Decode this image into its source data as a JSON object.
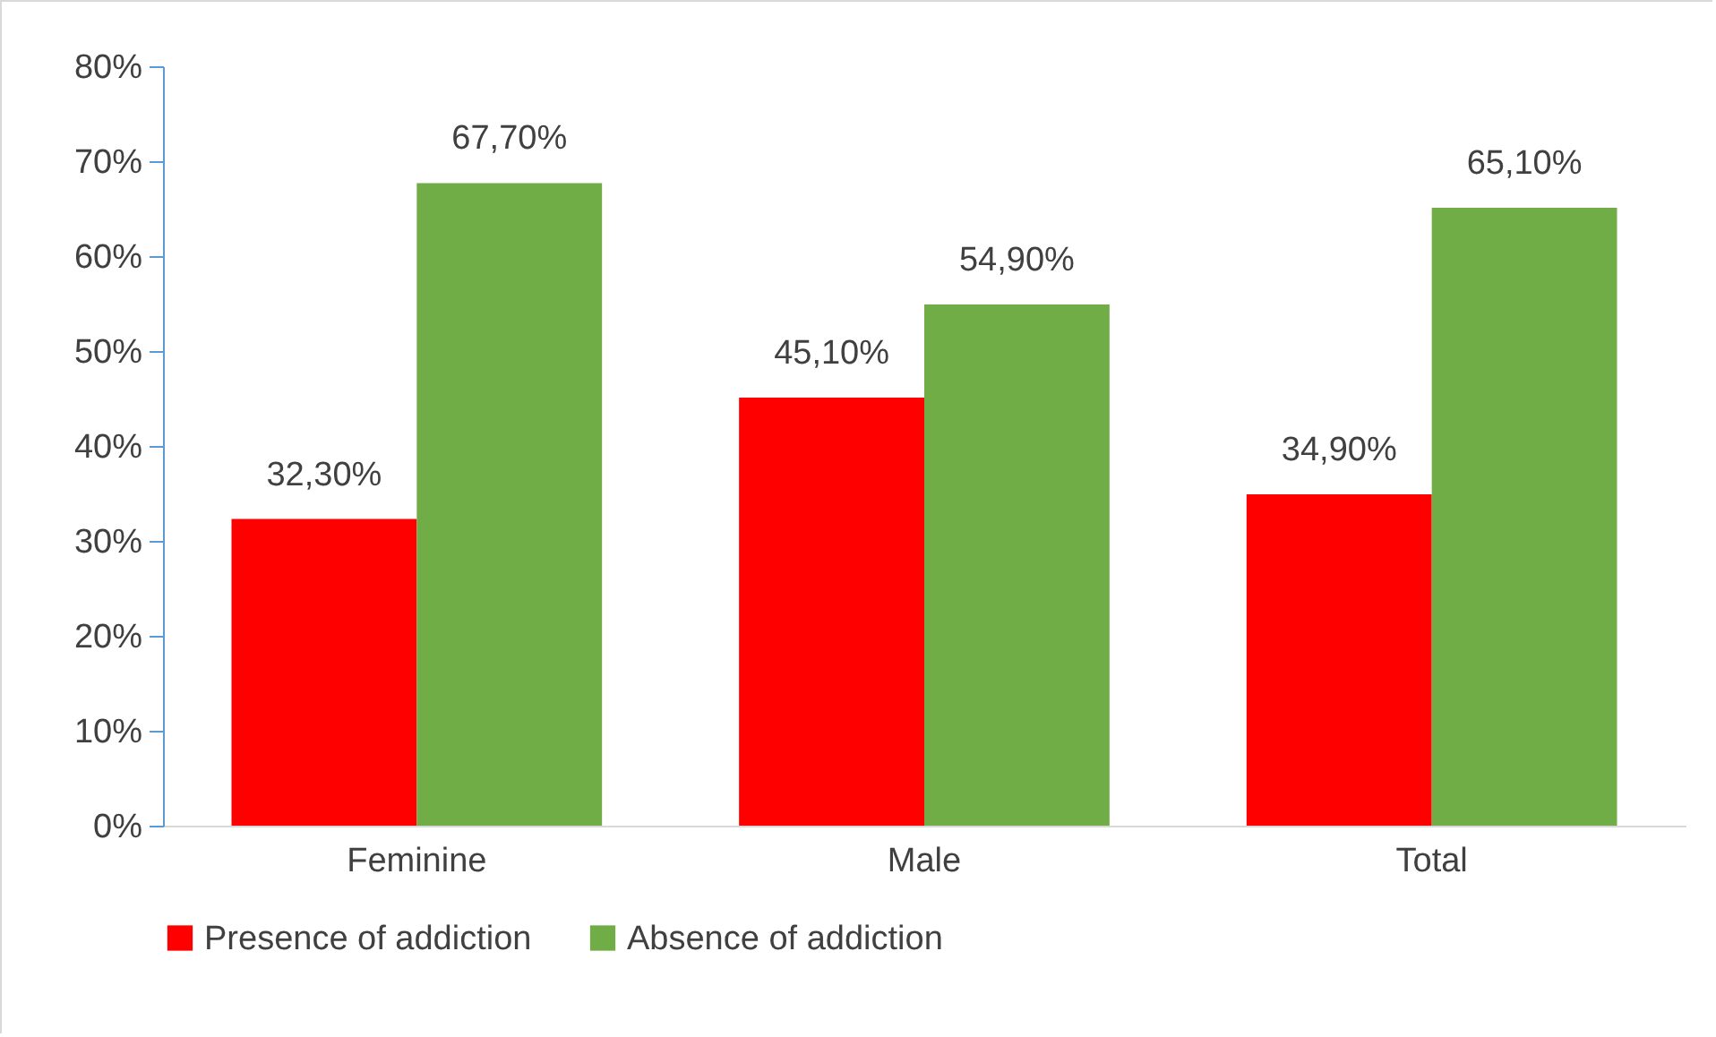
{
  "chart_data": {
    "type": "bar",
    "categories": [
      "Feminine",
      "Male",
      "Total"
    ],
    "series": [
      {
        "name": "Presence of addiction",
        "color": "#ff0000",
        "values": [
          32.3,
          45.1,
          34.9
        ],
        "value_labels": [
          "32,30%",
          "45,10%",
          "34,90%"
        ]
      },
      {
        "name": "Absence of addiction",
        "color": "#70ad47",
        "values": [
          67.7,
          54.9,
          65.1
        ],
        "value_labels": [
          "67,70%",
          "54,90%",
          "65,10%"
        ]
      }
    ],
    "ylim": [
      0,
      80
    ],
    "yticks": [
      {
        "value": 0,
        "label": "0%"
      },
      {
        "value": 10,
        "label": "10%"
      },
      {
        "value": 20,
        "label": "20%"
      },
      {
        "value": 30,
        "label": "30%"
      },
      {
        "value": 40,
        "label": "40%"
      },
      {
        "value": 50,
        "label": "50%"
      },
      {
        "value": 60,
        "label": "60%"
      },
      {
        "value": 70,
        "label": "70%"
      },
      {
        "value": 80,
        "label": "80%"
      }
    ],
    "grid": false,
    "legend": "bottom"
  }
}
